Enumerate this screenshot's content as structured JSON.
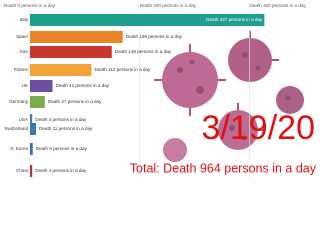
{
  "chart_data": {
    "type": "bar",
    "orientation": "horizontal",
    "categories": [
      "Italy",
      "Spain",
      "Iran",
      "France",
      "UK",
      "Germany",
      "USA",
      "Switzerland",
      "S. Korea",
      "China"
    ],
    "values": [
      427,
      169,
      149,
      112,
      41,
      27,
      4,
      11,
      5,
      4
    ],
    "value_labels": [
      "Death 427 persons in a day",
      "Death 169 persons in a day",
      "Death 149 persons in a day",
      "Death 112 persons in a day",
      "Death 41 persons in a day",
      "Death 27 persons in a day",
      "Death 4 persons in a day",
      "Death 11 persons in a day",
      "Death 5 persons in a day",
      "Death 4 persons in a day"
    ],
    "colors": [
      "#1f9e8e",
      "#e8862a",
      "#c8372d",
      "#f2a33a",
      "#6b4fa0",
      "#7cab4c",
      "#4a7ab8",
      "#3a78b5",
      "#3b6fb0",
      "#b03040"
    ],
    "xlim": [
      0,
      430
    ],
    "xticks": [
      {
        "value": 0,
        "label": "Death 0 persons in a day"
      },
      {
        "value": 200,
        "label": "Death 200 persons in a day"
      },
      {
        "value": 400,
        "label": "Death 400 persons in a day"
      }
    ],
    "grid": true,
    "date": "3/19/20",
    "total": "Total: Death 964 persons in a day"
  }
}
